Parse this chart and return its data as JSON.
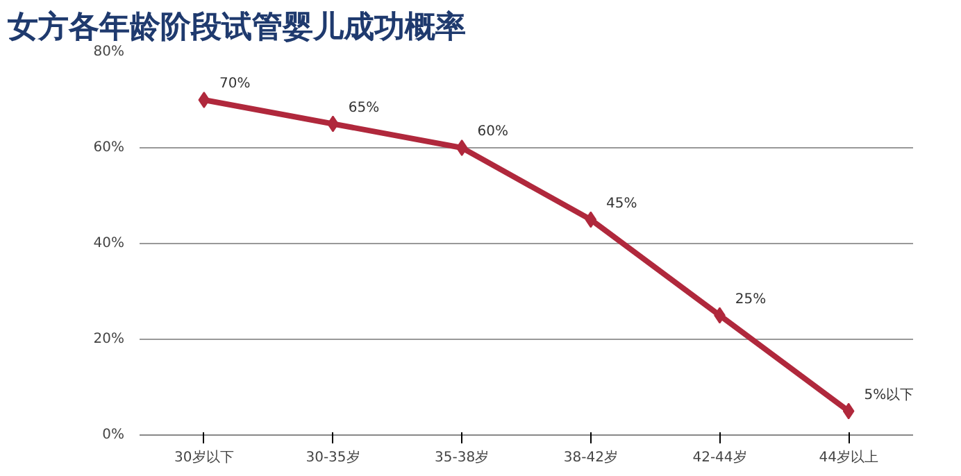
{
  "chart_data": {
    "type": "line",
    "title": "女方各年龄阶段试管婴儿成功概率",
    "categories": [
      "30岁以下",
      "30-35岁",
      "35-38岁",
      "38-42岁",
      "42-44岁",
      "44岁以上"
    ],
    "series": [
      {
        "color": "#b0283c",
        "values": [
          70,
          65,
          60,
          45,
          25,
          5
        ]
      }
    ],
    "value_labels": [
      "70%",
      "65%",
      "60%",
      "45%",
      "25%",
      "5%以下"
    ],
    "ylim": [
      0,
      80
    ],
    "yticks": [
      {
        "value": 0,
        "label": "0%"
      },
      {
        "value": 20,
        "label": "20%"
      },
      {
        "value": 40,
        "label": "40%"
      },
      {
        "value": 60,
        "label": "60%"
      },
      {
        "value": 80,
        "label": "80%"
      }
    ],
    "grid": "y",
    "marker": "diamond",
    "line_style": "solid"
  }
}
